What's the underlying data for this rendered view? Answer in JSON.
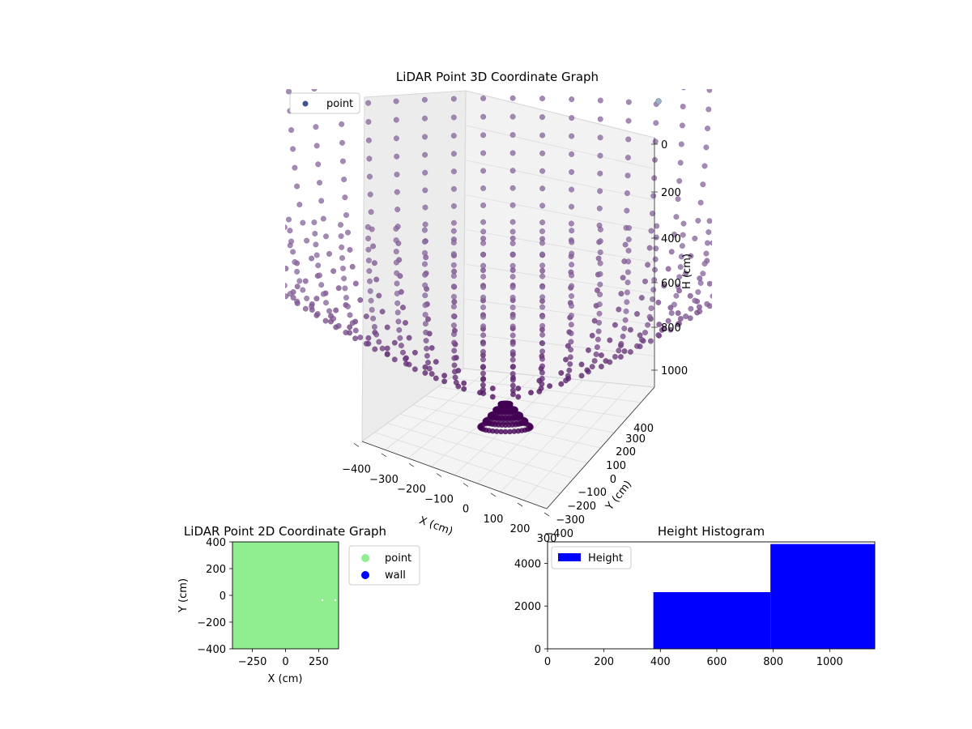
{
  "chart_data": [
    {
      "type": "scatter",
      "title": "LiDAR Point 3D Coordinate Graph",
      "xlabel": "X (cm)",
      "ylabel": "Y (cm)",
      "zlabel": "H (cm)",
      "xlim": [
        -400,
        400
      ],
      "ylim": [
        -400,
        400
      ],
      "zlim": [
        0,
        1100
      ],
      "x_ticks": [
        "−400",
        "−300",
        "−200",
        "−100",
        "0",
        "100",
        "200",
        "300"
      ],
      "y_ticks": [
        "−400",
        "−300",
        "−200",
        "−100",
        "0",
        "100",
        "200",
        "300",
        "400"
      ],
      "z_ticks": [
        "0",
        "200",
        "400",
        "600",
        "800",
        "1000"
      ],
      "z_inverted": true,
      "legend": [
        {
          "name": "point",
          "color": "#3b528b"
        }
      ],
      "legend_placement": "top-left",
      "colors": {
        "high": "#8b6aa0",
        "low": "#440154"
      },
      "description_shape": "bowl of points, rings of increasing radius with decreasing height",
      "sample_points": [
        {
          "x": 0,
          "y": 0,
          "h": 1060
        },
        {
          "x": 100,
          "y": 0,
          "h": 1000
        },
        {
          "x": 200,
          "y": 0,
          "h": 860
        },
        {
          "x": 300,
          "y": 0,
          "h": 620
        },
        {
          "x": 400,
          "y": 0,
          "h": 300
        }
      ]
    },
    {
      "type": "scatter",
      "title": "LiDAR Point 2D Coordinate Graph",
      "xlabel": "X (cm)",
      "ylabel": "Y (cm)",
      "xlim": [
        -400,
        400
      ],
      "ylim": [
        -400,
        400
      ],
      "x_ticks": [
        "−250",
        "0",
        "250"
      ],
      "y_ticks": [
        "400",
        "200",
        "0",
        "−200",
        "−400"
      ],
      "series": [
        {
          "name": "point",
          "color": "#90ee90"
        },
        {
          "name": "wall",
          "color": "#0000ff"
        }
      ],
      "legend_placement": "outside-right"
    },
    {
      "type": "bar",
      "title": "Height Histogram",
      "xlim": [
        0,
        1160
      ],
      "ylim": [
        0,
        5000
      ],
      "x_ticks": [
        "0",
        "200",
        "400",
        "600",
        "800",
        "1000"
      ],
      "y_ticks": [
        "0",
        "2000",
        "4000"
      ],
      "bins": [
        {
          "start": 0,
          "end": 375,
          "count": 0
        },
        {
          "start": 375,
          "end": 790,
          "count": 2650
        },
        {
          "start": 790,
          "end": 1160,
          "count": 4900
        }
      ],
      "series": [
        {
          "name": "Height",
          "color": "#0000ff"
        }
      ],
      "legend_placement": "top-left"
    }
  ]
}
